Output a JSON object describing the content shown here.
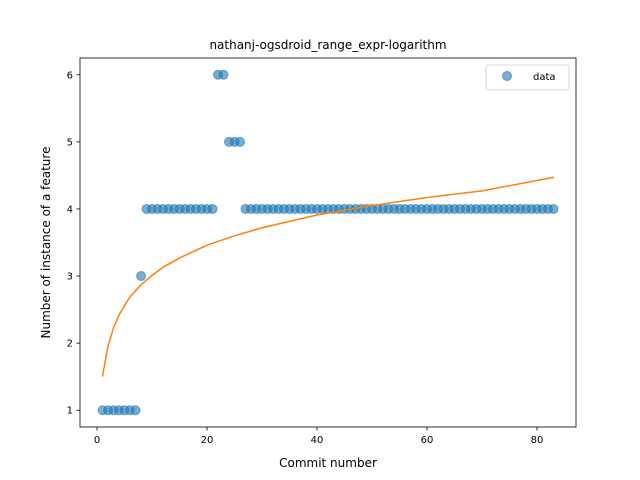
{
  "chart_data": {
    "type": "scatter",
    "title": "nathanj-ogsdroid_range_expr-logarithm",
    "xlabel": "Commit number",
    "ylabel": "Number of instance of a feature",
    "xlim": [
      -3.1,
      87.1
    ],
    "ylim": [
      0.75,
      6.25
    ],
    "xticks": [
      0,
      20,
      40,
      60,
      80
    ],
    "yticks": [
      1,
      2,
      3,
      4,
      5,
      6
    ],
    "grid": false,
    "legend": {
      "placement": "top-right",
      "entries": [
        "data"
      ]
    },
    "series": [
      {
        "name": "data",
        "kind": "scatter",
        "color": "#1f77b4",
        "x": [
          1,
          2,
          3,
          4,
          5,
          6,
          7,
          8,
          9,
          10,
          11,
          12,
          13,
          14,
          15,
          16,
          17,
          18,
          19,
          20,
          21,
          22,
          23,
          24,
          25,
          26,
          27,
          28,
          29,
          30,
          31,
          32,
          33,
          34,
          35,
          36,
          37,
          38,
          39,
          40,
          41,
          42,
          43,
          44,
          45,
          46,
          47,
          48,
          49,
          50,
          51,
          52,
          53,
          54,
          55,
          56,
          57,
          58,
          59,
          60,
          61,
          62,
          63,
          64,
          65,
          66,
          67,
          68,
          69,
          70,
          71,
          72,
          73,
          74,
          75,
          76,
          77,
          78,
          79,
          80,
          81,
          82,
          83
        ],
        "y": [
          1,
          1,
          1,
          1,
          1,
          1,
          1,
          3,
          4,
          4,
          4,
          4,
          4,
          4,
          4,
          4,
          4,
          4,
          4,
          4,
          4,
          6,
          6,
          5,
          5,
          5,
          4,
          4,
          4,
          4,
          4,
          4,
          4,
          4,
          4,
          4,
          4,
          4,
          4,
          4,
          4,
          4,
          4,
          4,
          4,
          4,
          4,
          4,
          4,
          4,
          4,
          4,
          4,
          4,
          4,
          4,
          4,
          4,
          4,
          4,
          4,
          4,
          4,
          4,
          4,
          4,
          4,
          4,
          4,
          4,
          4,
          4,
          4,
          4,
          4,
          4,
          4,
          4,
          4,
          4,
          4,
          4,
          4
        ]
      },
      {
        "kind": "line",
        "color": "#ff7f0e",
        "x": [
          1,
          2,
          3,
          4,
          5,
          6,
          7,
          8,
          10,
          12,
          15,
          20,
          25,
          30,
          40,
          50,
          60,
          70,
          83
        ],
        "y": [
          1.51,
          1.96,
          2.23,
          2.42,
          2.56,
          2.69,
          2.78,
          2.87,
          3.01,
          3.13,
          3.27,
          3.46,
          3.6,
          3.72,
          3.91,
          4.05,
          4.17,
          4.27,
          4.47
        ]
      }
    ]
  }
}
